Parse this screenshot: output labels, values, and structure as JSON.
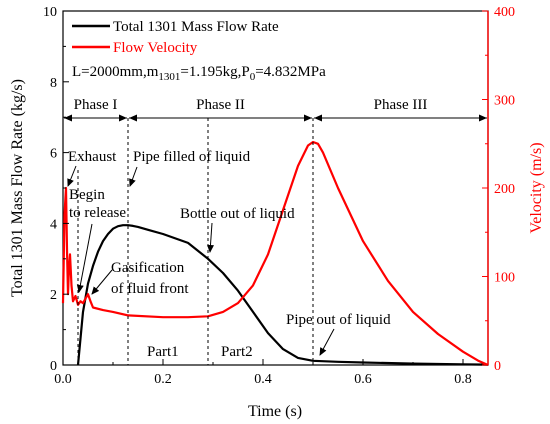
{
  "chart_data": {
    "type": "line",
    "xlabel": "Time (s)",
    "ylabel_left": "Total 1301 Mass Flow Rate (kg/s)",
    "ylabel_right": "Velocity (m/s)",
    "xlim": [
      0,
      0.85
    ],
    "ylim_left": [
      0,
      10
    ],
    "ylim_right": [
      0,
      400
    ],
    "x_ticks": [
      "0.0",
      "0.2",
      "0.4",
      "0.6",
      "0.8"
    ],
    "y_left_ticks": [
      "0",
      "2",
      "4",
      "6",
      "8",
      "10"
    ],
    "y_right_ticks": [
      "0",
      "100",
      "200",
      "300",
      "400"
    ],
    "legend_placement": "top-left",
    "parameter_text": {
      "prefix": "L=2000mm,m",
      "m_sub": "1301",
      "middle": "=1.195kg,P",
      "p_sub": "0",
      "suffix": "=4.832MPa"
    },
    "series": [
      {
        "name": "Total 1301 Mass Flow Rate",
        "color": "#000000",
        "axis": "left",
        "x": [
          0.03,
          0.04,
          0.05,
          0.06,
          0.07,
          0.08,
          0.09,
          0.1,
          0.11,
          0.12,
          0.13,
          0.14,
          0.15,
          0.17,
          0.2,
          0.25,
          0.29,
          0.32,
          0.35,
          0.38,
          0.41,
          0.44,
          0.47,
          0.5,
          0.55,
          0.6,
          0.7,
          0.8,
          0.85
        ],
        "values": [
          0.0,
          1.5,
          2.3,
          2.8,
          3.2,
          3.5,
          3.7,
          3.85,
          3.92,
          3.95,
          3.95,
          3.93,
          3.9,
          3.82,
          3.7,
          3.45,
          3.0,
          2.6,
          2.1,
          1.5,
          0.9,
          0.45,
          0.2,
          0.12,
          0.09,
          0.07,
          0.04,
          0.02,
          0.01
        ]
      },
      {
        "name": "Flow Velocity",
        "color": "#ff0000",
        "axis": "right",
        "x": [
          0.0,
          0.003,
          0.006,
          0.008,
          0.01,
          0.012,
          0.014,
          0.017,
          0.02,
          0.025,
          0.03,
          0.035,
          0.04,
          0.045,
          0.05,
          0.055,
          0.06,
          0.08,
          0.1,
          0.13,
          0.2,
          0.25,
          0.29,
          0.32,
          0.35,
          0.38,
          0.41,
          0.44,
          0.47,
          0.49,
          0.5,
          0.51,
          0.52,
          0.55,
          0.6,
          0.65,
          0.7,
          0.75,
          0.8,
          0.83,
          0.85
        ],
        "values": [
          70,
          170,
          200,
          130,
          80,
          110,
          125,
          90,
          72,
          78,
          68,
          72,
          70,
          75,
          80,
          72,
          65,
          62,
          60,
          56,
          54,
          54,
          55,
          60,
          70,
          90,
          125,
          175,
          225,
          248,
          252,
          250,
          240,
          200,
          140,
          95,
          60,
          35,
          15,
          5,
          0
        ]
      }
    ],
    "phases": [
      {
        "label": "Phase I",
        "x_from": 0.0,
        "x_to": 0.13
      },
      {
        "label": "Phase II",
        "x_from": 0.13,
        "x_to": 0.5
      },
      {
        "label": "Phase III",
        "x_from": 0.5,
        "x_to": 0.85
      }
    ],
    "vertical_markers": [
      0.03,
      0.13,
      0.29,
      0.5
    ],
    "annotations": {
      "exhaust": "Exhaust",
      "begin_line1": "Begin",
      "begin_line2": "to release",
      "pipe_filled": "Pipe filled of liquid",
      "bottle_out": "Bottle out of liquid",
      "gasification_line1": "Gasification",
      "gasification_line2": "of fluid front",
      "pipe_out": "Pipe out of liquid",
      "part1": "Part1",
      "part2": "Part2"
    }
  }
}
